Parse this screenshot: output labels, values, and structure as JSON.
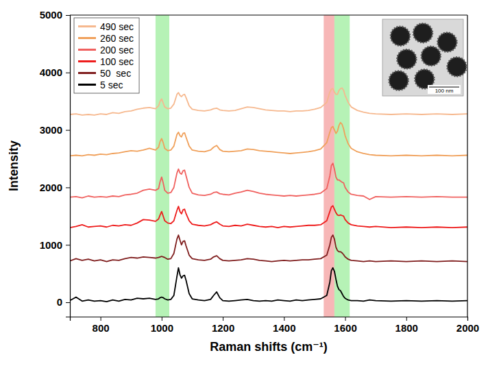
{
  "chart_data": {
    "type": "line",
    "x_label": "Raman shifts (cm⁻¹)",
    "y_label": "Intensity",
    "xlim": [
      700,
      2000
    ],
    "ylim": [
      -250,
      5000
    ],
    "xticks": [
      800,
      1000,
      1200,
      1400,
      1600,
      1800,
      2000
    ],
    "yticks": [
      0,
      1000,
      2000,
      3000,
      4000,
      5000
    ],
    "legend": "upper left",
    "x": [
      700,
      720,
      740,
      760,
      780,
      800,
      820,
      840,
      860,
      880,
      900,
      920,
      940,
      960,
      980,
      990,
      995,
      1000,
      1005,
      1010,
      1020,
      1030,
      1040,
      1050,
      1055,
      1060,
      1065,
      1070,
      1075,
      1080,
      1090,
      1100,
      1120,
      1140,
      1160,
      1170,
      1180,
      1190,
      1200,
      1220,
      1240,
      1260,
      1280,
      1300,
      1320,
      1340,
      1360,
      1380,
      1400,
      1420,
      1440,
      1460,
      1480,
      1500,
      1520,
      1540,
      1550,
      1555,
      1560,
      1565,
      1570,
      1575,
      1580,
      1585,
      1590,
      1595,
      1600,
      1610,
      1620,
      1640,
      1660,
      1680,
      1700,
      1750,
      1800,
      1850,
      1900,
      1950,
      2000
    ],
    "bands": [
      {
        "x0": 980,
        "x1": 1025,
        "color": "#b6f2b6"
      },
      {
        "x0": 1530,
        "x1": 1565,
        "color": "#f7b7b7"
      },
      {
        "x0": 1565,
        "x1": 1615,
        "color": "#b6f2b6"
      }
    ],
    "series": [
      {
        "name": "490 sec",
        "color": "#f6b88e",
        "values": [
          3270,
          3280,
          3260,
          3270,
          3260,
          3280,
          3270,
          3300,
          3290,
          3320,
          3330,
          3360,
          3380,
          3390,
          3370,
          3420,
          3500,
          3540,
          3470,
          3400,
          3370,
          3380,
          3450,
          3620,
          3650,
          3600,
          3580,
          3610,
          3620,
          3560,
          3420,
          3360,
          3340,
          3330,
          3350,
          3370,
          3380,
          3350,
          3340,
          3330,
          3340,
          3370,
          3400,
          3390,
          3370,
          3350,
          3340,
          3330,
          3330,
          3320,
          3330,
          3330,
          3340,
          3360,
          3390,
          3480,
          3660,
          3710,
          3720,
          3660,
          3620,
          3620,
          3690,
          3720,
          3730,
          3690,
          3600,
          3480,
          3400,
          3340,
          3310,
          3290,
          3280,
          3270,
          3280,
          3270,
          3280,
          3270,
          3280
        ]
      },
      {
        "name": "260 sec",
        "color": "#f0a05a",
        "values": [
          2550,
          2560,
          2550,
          2570,
          2560,
          2580,
          2570,
          2590,
          2600,
          2620,
          2640,
          2630,
          2650,
          2680,
          2650,
          2700,
          2800,
          2850,
          2780,
          2680,
          2640,
          2650,
          2720,
          2920,
          2960,
          2900,
          2880,
          2940,
          2950,
          2870,
          2720,
          2650,
          2630,
          2620,
          2650,
          2700,
          2730,
          2660,
          2630,
          2620,
          2630,
          2640,
          2670,
          2660,
          2640,
          2630,
          2620,
          2610,
          2600,
          2590,
          2600,
          2610,
          2620,
          2640,
          2670,
          2780,
          2960,
          3040,
          3060,
          3000,
          2940,
          2980,
          3080,
          3130,
          3100,
          3020,
          2900,
          2760,
          2680,
          2620,
          2590,
          2570,
          2560,
          2550,
          2560,
          2550,
          2560,
          2550,
          2560
        ]
      },
      {
        "name": "200 sec",
        "color": "#f0605e",
        "values": [
          1830,
          1840,
          1820,
          1850,
          1830,
          1840,
          1830,
          1850,
          1840,
          1870,
          1880,
          1900,
          1950,
          1970,
          1950,
          1980,
          2100,
          2180,
          2080,
          1950,
          1900,
          1910,
          2000,
          2250,
          2320,
          2250,
          2230,
          2290,
          2300,
          2200,
          2000,
          1900,
          1870,
          1860,
          1880,
          1910,
          1920,
          1890,
          1880,
          1870,
          1900,
          1920,
          1950,
          1930,
          1900,
          1880,
          1870,
          1860,
          1850,
          1860,
          1850,
          1860,
          1870,
          1880,
          1900,
          1980,
          2200,
          2380,
          2420,
          2320,
          2180,
          2130,
          2130,
          2110,
          2090,
          2080,
          2000,
          1920,
          1880,
          1860,
          1850,
          1790,
          1840,
          1830,
          1840,
          1830,
          1840,
          1830,
          1830
        ]
      },
      {
        "name": "100 sec",
        "color": "#ee1c1c",
        "values": [
          1300,
          1320,
          1350,
          1310,
          1320,
          1330,
          1310,
          1340,
          1330,
          1350,
          1340,
          1380,
          1440,
          1430,
          1410,
          1450,
          1520,
          1580,
          1500,
          1420,
          1380,
          1370,
          1420,
          1600,
          1670,
          1580,
          1540,
          1610,
          1620,
          1540,
          1420,
          1360,
          1340,
          1330,
          1350,
          1380,
          1400,
          1360,
          1330,
          1320,
          1340,
          1330,
          1360,
          1340,
          1320,
          1310,
          1320,
          1300,
          1320,
          1310,
          1320,
          1330,
          1340,
          1340,
          1350,
          1420,
          1580,
          1660,
          1680,
          1620,
          1560,
          1520,
          1510,
          1520,
          1510,
          1500,
          1440,
          1380,
          1350,
          1330,
          1320,
          1310,
          1320,
          1300,
          1310,
          1300,
          1310,
          1300,
          1310
        ]
      },
      {
        "name": "50  sec",
        "color": "#7f1d1d",
        "values": [
          720,
          760,
          730,
          750,
          720,
          740,
          710,
          740,
          730,
          760,
          780,
          770,
          790,
          780,
          770,
          780,
          790,
          800,
          790,
          780,
          750,
          760,
          850,
          1100,
          1170,
          1080,
          1000,
          1060,
          1070,
          980,
          820,
          760,
          740,
          730,
          750,
          790,
          810,
          760,
          730,
          720,
          730,
          740,
          760,
          750,
          730,
          720,
          710,
          720,
          730,
          720,
          730,
          740,
          740,
          750,
          760,
          820,
          1000,
          1130,
          1170,
          1100,
          960,
          900,
          880,
          880,
          860,
          830,
          790,
          750,
          730,
          720,
          710,
          720,
          710,
          720,
          710,
          720,
          710,
          720,
          710
        ]
      },
      {
        "name": "5 sec",
        "color": "#000000",
        "values": [
          30,
          90,
          20,
          40,
          20,
          30,
          10,
          40,
          20,
          50,
          40,
          70,
          60,
          70,
          50,
          60,
          80,
          90,
          80,
          60,
          40,
          50,
          120,
          450,
          600,
          480,
          420,
          460,
          470,
          380,
          150,
          60,
          40,
          30,
          50,
          120,
          180,
          80,
          30,
          20,
          30,
          40,
          50,
          30,
          20,
          30,
          20,
          40,
          30,
          20,
          40,
          30,
          40,
          50,
          60,
          120,
          350,
          550,
          600,
          540,
          400,
          280,
          220,
          200,
          150,
          100,
          70,
          40,
          30,
          30,
          20,
          40,
          30,
          20,
          30,
          20,
          30,
          20,
          30
        ]
      }
    ],
    "inset": {
      "scale_label": "100 nm"
    }
  }
}
